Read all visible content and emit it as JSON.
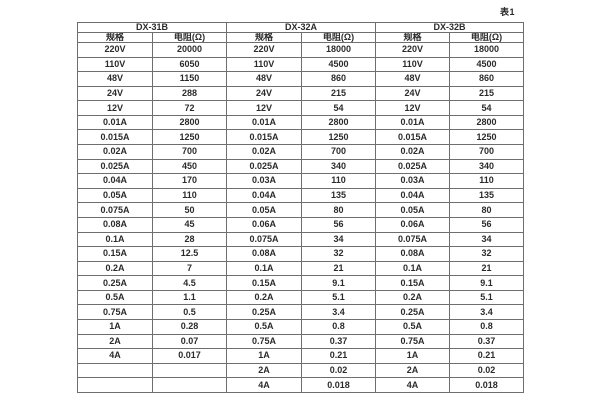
{
  "page": {
    "label": "表1"
  },
  "colors": {
    "border": "#6e6e6e",
    "text": "#2b2b2b",
    "background": "#ffffff"
  },
  "table": {
    "groups": [
      {
        "name": "DX-31B",
        "spec_header": "规格",
        "res_header": "电阻(Ω)"
      },
      {
        "name": "DX-32A",
        "spec_header": "规格",
        "res_header": "电阻(Ω)"
      },
      {
        "name": "DX-32B",
        "spec_header": "规格",
        "res_header": "电阻(Ω)"
      }
    ],
    "rows": [
      [
        "220V",
        "20000",
        "220V",
        "18000",
        "220V",
        "18000"
      ],
      [
        "110V",
        "6050",
        "110V",
        "4500",
        "110V",
        "4500"
      ],
      [
        "48V",
        "1150",
        "48V",
        "860",
        "48V",
        "860"
      ],
      [
        "24V",
        "288",
        "24V",
        "215",
        "24V",
        "215"
      ],
      [
        "12V",
        "72",
        "12V",
        "54",
        "12V",
        "54"
      ],
      [
        "0.01A",
        "2800",
        "0.01A",
        "2800",
        "0.01A",
        "2800"
      ],
      [
        "0.015A",
        "1250",
        "0.015A",
        "1250",
        "0.015A",
        "1250"
      ],
      [
        "0.02A",
        "700",
        "0.02A",
        "700",
        "0.02A",
        "700"
      ],
      [
        "0.025A",
        "450",
        "0.025A",
        "340",
        "0.025A",
        "340"
      ],
      [
        "0.04A",
        "170",
        "0.03A",
        "110",
        "0.03A",
        "110"
      ],
      [
        "0.05A",
        "110",
        "0.04A",
        "135",
        "0.04A",
        "135"
      ],
      [
        "0.075A",
        "50",
        "0.05A",
        "80",
        "0.05A",
        "80"
      ],
      [
        "0.08A",
        "45",
        "0.06A",
        "56",
        "0.06A",
        "56"
      ],
      [
        "0.1A",
        "28",
        "0.075A",
        "34",
        "0.075A",
        "34"
      ],
      [
        "0.15A",
        "12.5",
        "0.08A",
        "32",
        "0.08A",
        "32"
      ],
      [
        "0.2A",
        "7",
        "0.1A",
        "21",
        "0.1A",
        "21"
      ],
      [
        "0.25A",
        "4.5",
        "0.15A",
        "9.1",
        "0.15A",
        "9.1"
      ],
      [
        "0.5A",
        "1.1",
        "0.2A",
        "5.1",
        "0.2A",
        "5.1"
      ],
      [
        "0.75A",
        "0.5",
        "0.25A",
        "3.4",
        "0.25A",
        "3.4"
      ],
      [
        "1A",
        "0.28",
        "0.5A",
        "0.8",
        "0.5A",
        "0.8"
      ],
      [
        "2A",
        "0.07",
        "0.75A",
        "0.37",
        "0.75A",
        "0.37"
      ],
      [
        "4A",
        "0.017",
        "1A",
        "0.21",
        "1A",
        "0.21"
      ],
      [
        "",
        "",
        "2A",
        "0.02",
        "2A",
        "0.02"
      ],
      [
        "",
        "",
        "4A",
        "0.018",
        "4A",
        "0.018"
      ]
    ]
  }
}
